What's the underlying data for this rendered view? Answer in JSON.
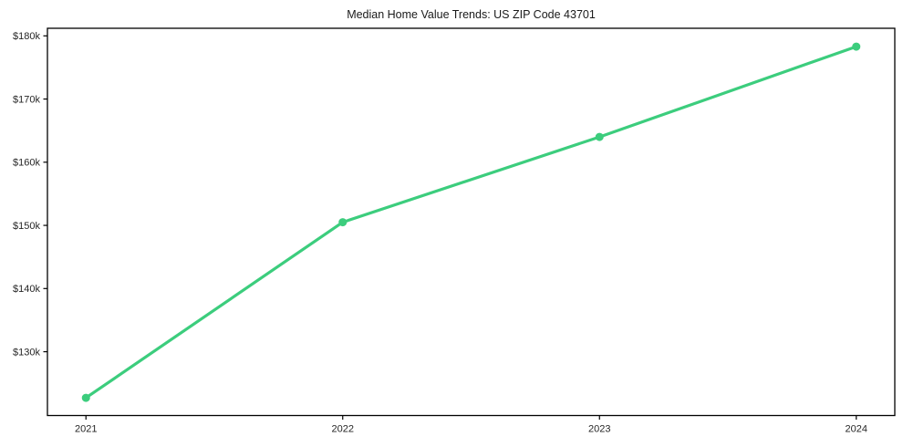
{
  "chart_data": {
    "type": "line",
    "title": "Median Home Value Trends: US ZIP Code 43701",
    "xlabel": "",
    "ylabel": "",
    "x": [
      2021,
      2022,
      2023,
      2024
    ],
    "series": [
      {
        "name": "Median Home Value",
        "values": [
          122700,
          150500,
          164000,
          178300
        ]
      }
    ],
    "x_tick_labels": [
      "2021",
      "2022",
      "2023",
      "2024"
    ],
    "y_ticks": [
      130000,
      140000,
      150000,
      160000,
      170000,
      180000
    ],
    "y_tick_labels": [
      "$130k",
      "$140k",
      "$150k",
      "$160k",
      "$170k",
      "$180k"
    ],
    "xlim": [
      2020.85,
      2024.15
    ],
    "ylim": [
      119900,
      181200
    ],
    "grid": false,
    "legend_position": "none",
    "colors": {
      "line": "#3ccd7d",
      "marker": "#3ccd7d",
      "frame": "#000000",
      "tick": "#000000",
      "text": "#262626",
      "title_text": "#1a1a1a",
      "background": "#ffffff"
    },
    "style": {
      "line_width": 3.2,
      "marker_shape": "circle",
      "marker_radius": 4.5
    }
  }
}
